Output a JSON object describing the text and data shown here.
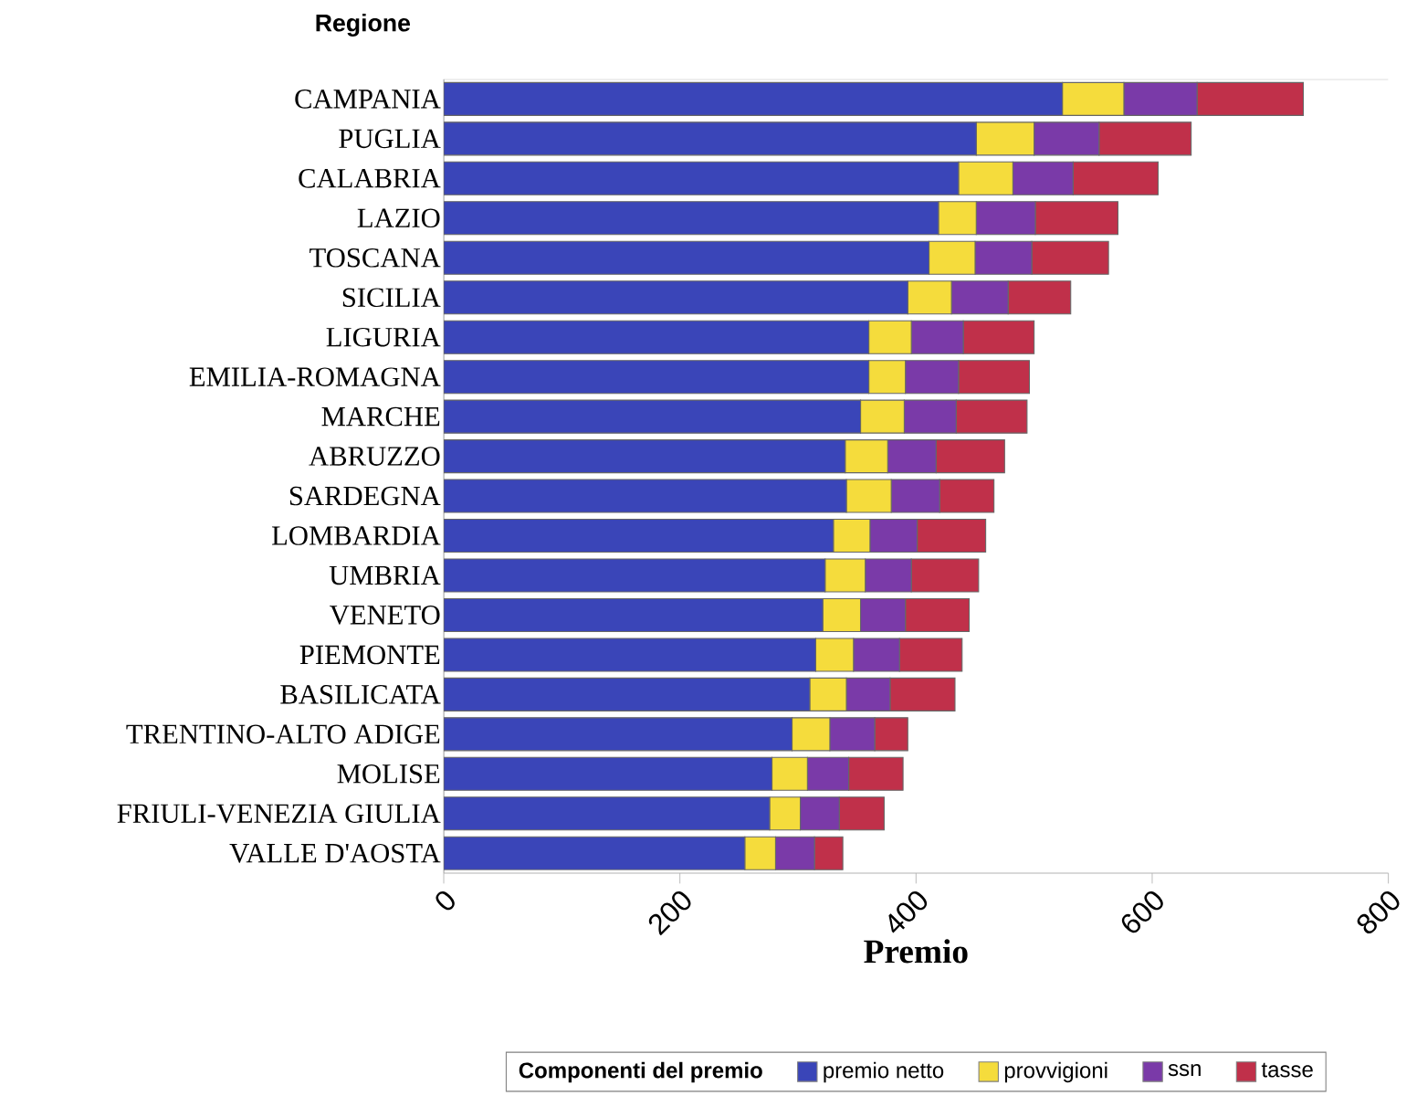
{
  "chart_data": {
    "type": "bar",
    "orientation": "horizontal",
    "stacked": true,
    "ylabel": "Regione",
    "xlabel": "Premio",
    "legend_title": "Componenti del premio",
    "legend": "bottom",
    "categories": [
      "CAMPANIA",
      "PUGLIA",
      "CALABRIA",
      "LAZIO",
      "TOSCANA",
      "SICILIA",
      "LIGURIA",
      "EMILIA-ROMAGNA",
      "MARCHE",
      "ABRUZZO",
      "SARDEGNA",
      "LOMBARDIA",
      "UMBRIA",
      "VENETO",
      "PIEMONTE",
      "BASILICATA",
      "TRENTINO-ALTO ADIGE",
      "MOLISE",
      "FRIULI-VENEZIA GIULIA",
      "VALLE D'AOSTA"
    ],
    "xlim": [
      0,
      800
    ],
    "xticks": [
      0,
      200,
      400,
      600,
      800
    ],
    "series": [
      {
        "name": "premio netto",
        "color": "#3a45b8",
        "values": [
          524,
          451,
          436,
          419,
          411,
          393,
          360,
          360,
          353,
          340,
          341,
          330,
          323,
          321,
          315,
          310,
          295,
          278,
          276,
          255
        ]
      },
      {
        "name": "provvigioni",
        "color": "#f5dc3c",
        "values": [
          52,
          49,
          46,
          32,
          39,
          37,
          36,
          31,
          37,
          36,
          38,
          31,
          34,
          32,
          32,
          31,
          32,
          30,
          26,
          26
        ]
      },
      {
        "name": "ssn",
        "color": "#7a3aa8",
        "values": [
          62,
          55,
          51,
          50,
          48,
          48,
          44,
          45,
          44,
          41,
          41,
          40,
          39,
          38,
          39,
          37,
          38,
          35,
          33,
          33
        ]
      },
      {
        "name": "tasse",
        "color": "#c0304a",
        "values": [
          90,
          78,
          72,
          70,
          65,
          53,
          60,
          60,
          60,
          58,
          46,
          58,
          57,
          54,
          53,
          55,
          28,
          46,
          38,
          24
        ]
      }
    ]
  }
}
